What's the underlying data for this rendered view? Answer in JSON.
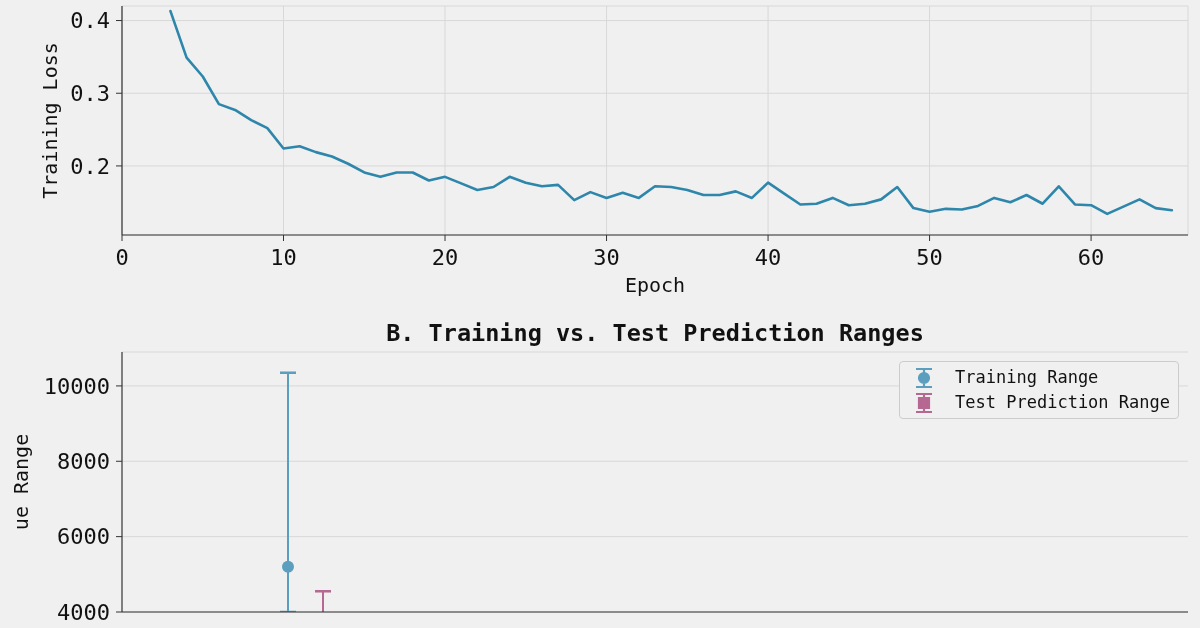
{
  "chart_data": [
    {
      "type": "line",
      "xlabel": "Epoch",
      "ylabel": "Training Loss",
      "x": [
        3,
        4,
        5,
        6,
        7,
        8,
        9,
        10,
        11,
        12,
        13,
        14,
        15,
        16,
        17,
        18,
        19,
        20,
        21,
        22,
        23,
        24,
        25,
        26,
        27,
        28,
        29,
        30,
        31,
        32,
        33,
        34,
        35,
        36,
        37,
        38,
        39,
        40,
        41,
        42,
        43,
        44,
        45,
        46,
        47,
        48,
        49,
        50,
        51,
        52,
        53,
        54,
        55,
        56,
        57,
        58,
        59,
        60,
        61,
        62,
        63,
        64,
        65
      ],
      "series": [
        {
          "color": "#2e86ab",
          "values": [
            0.413,
            0.349,
            0.323,
            0.285,
            0.277,
            0.263,
            0.252,
            0.224,
            0.227,
            0.219,
            0.213,
            0.203,
            0.191,
            0.185,
            0.191,
            0.191,
            0.18,
            0.185,
            0.176,
            0.167,
            0.171,
            0.185,
            0.177,
            0.172,
            0.174,
            0.153,
            0.164,
            0.156,
            0.163,
            0.156,
            0.172,
            0.171,
            0.167,
            0.16,
            0.16,
            0.165,
            0.156,
            0.177,
            0.162,
            0.147,
            0.148,
            0.156,
            0.146,
            0.148,
            0.154,
            0.171,
            0.142,
            0.137,
            0.141,
            0.14,
            0.145,
            0.156,
            0.15,
            0.16,
            0.148,
            0.172,
            0.147,
            0.146,
            0.134,
            0.144,
            0.154,
            0.142,
            0.139
          ]
        }
      ],
      "xlim": [
        0,
        66
      ],
      "xticks": [
        0,
        10,
        20,
        30,
        40,
        50,
        60
      ],
      "ylim": [
        0.105,
        0.42
      ],
      "yticks": [
        0.2,
        0.3,
        0.4
      ],
      "grid": true
    },
    {
      "type": "scatter",
      "title": "B. Training vs. Test Prediction Ranges",
      "ylabel": "ue Range",
      "categories": [
        null,
        null,
        null
      ],
      "series": [
        {
          "name": "Training Range",
          "color": "#5b9ebe",
          "marker": "circle",
          "values": [
            5200,
            null,
            null
          ],
          "errors": [
            [
              4000,
              10350
            ],
            null,
            null
          ]
        },
        {
          "name": "Test Prediction Range",
          "type": "bar",
          "color": "#b56892",
          "marker": "square",
          "base": [
            4000,
            null,
            null
          ],
          "values": [
            550,
            null,
            null
          ]
        }
      ],
      "ylim": [
        4000,
        10900
      ],
      "yticks": [
        4000,
        6000,
        8000,
        10000
      ],
      "grid": "y",
      "legend": "top right",
      "tick_labels": "y"
    }
  ]
}
